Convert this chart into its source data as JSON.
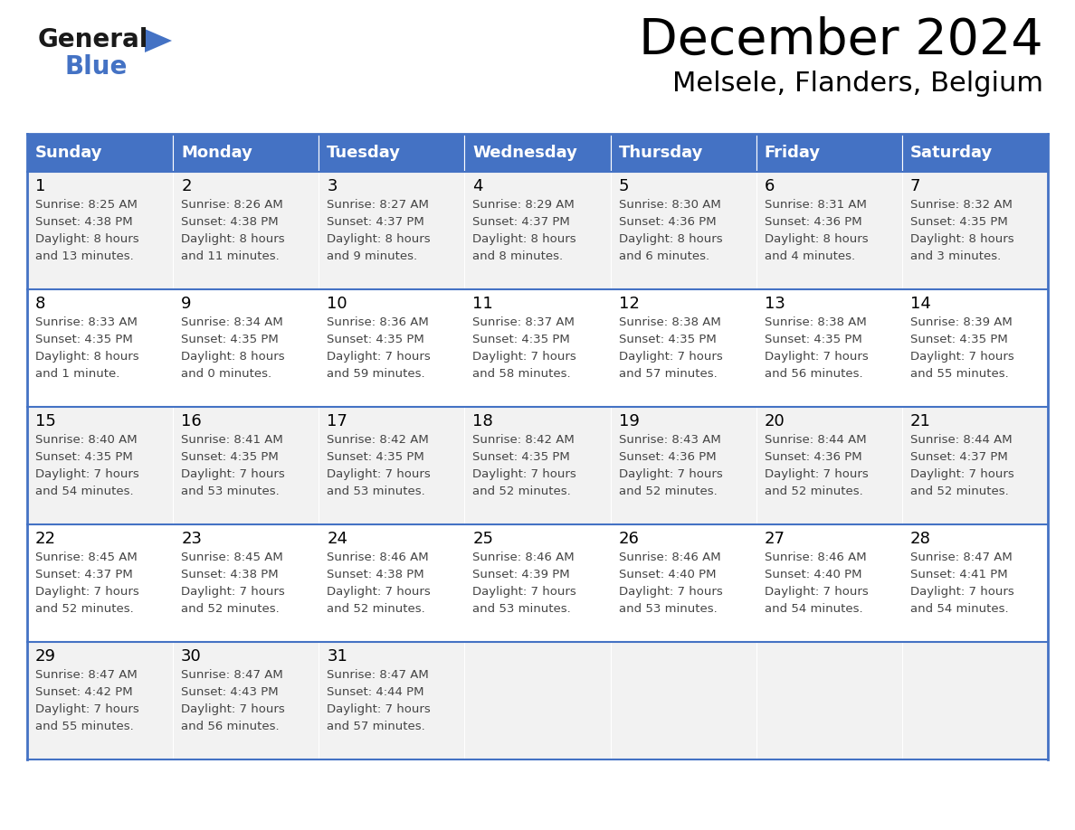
{
  "title": "December 2024",
  "subtitle": "Melsele, Flanders, Belgium",
  "days_of_week": [
    "Sunday",
    "Monday",
    "Tuesday",
    "Wednesday",
    "Thursday",
    "Friday",
    "Saturday"
  ],
  "header_bg": "#4472C4",
  "header_text": "#FFFFFF",
  "row_bg_odd": "#F2F2F2",
  "row_bg_even": "#FFFFFF",
  "border_color": "#4472C4",
  "day_text_color": "#000000",
  "info_text_color": "#444444",
  "calendar": [
    [
      {
        "day": 1,
        "sunrise": "8:25 AM",
        "sunset": "4:38 PM",
        "daylight_h": "8 hours",
        "daylight_m": "and 13 minutes."
      },
      {
        "day": 2,
        "sunrise": "8:26 AM",
        "sunset": "4:38 PM",
        "daylight_h": "8 hours",
        "daylight_m": "and 11 minutes."
      },
      {
        "day": 3,
        "sunrise": "8:27 AM",
        "sunset": "4:37 PM",
        "daylight_h": "8 hours",
        "daylight_m": "and 9 minutes."
      },
      {
        "day": 4,
        "sunrise": "8:29 AM",
        "sunset": "4:37 PM",
        "daylight_h": "8 hours",
        "daylight_m": "and 8 minutes."
      },
      {
        "day": 5,
        "sunrise": "8:30 AM",
        "sunset": "4:36 PM",
        "daylight_h": "8 hours",
        "daylight_m": "and 6 minutes."
      },
      {
        "day": 6,
        "sunrise": "8:31 AM",
        "sunset": "4:36 PM",
        "daylight_h": "8 hours",
        "daylight_m": "and 4 minutes."
      },
      {
        "day": 7,
        "sunrise": "8:32 AM",
        "sunset": "4:35 PM",
        "daylight_h": "8 hours",
        "daylight_m": "and 3 minutes."
      }
    ],
    [
      {
        "day": 8,
        "sunrise": "8:33 AM",
        "sunset": "4:35 PM",
        "daylight_h": "8 hours",
        "daylight_m": "and 1 minute."
      },
      {
        "day": 9,
        "sunrise": "8:34 AM",
        "sunset": "4:35 PM",
        "daylight_h": "8 hours",
        "daylight_m": "and 0 minutes."
      },
      {
        "day": 10,
        "sunrise": "8:36 AM",
        "sunset": "4:35 PM",
        "daylight_h": "7 hours",
        "daylight_m": "and 59 minutes."
      },
      {
        "day": 11,
        "sunrise": "8:37 AM",
        "sunset": "4:35 PM",
        "daylight_h": "7 hours",
        "daylight_m": "and 58 minutes."
      },
      {
        "day": 12,
        "sunrise": "8:38 AM",
        "sunset": "4:35 PM",
        "daylight_h": "7 hours",
        "daylight_m": "and 57 minutes."
      },
      {
        "day": 13,
        "sunrise": "8:38 AM",
        "sunset": "4:35 PM",
        "daylight_h": "7 hours",
        "daylight_m": "and 56 minutes."
      },
      {
        "day": 14,
        "sunrise": "8:39 AM",
        "sunset": "4:35 PM",
        "daylight_h": "7 hours",
        "daylight_m": "and 55 minutes."
      }
    ],
    [
      {
        "day": 15,
        "sunrise": "8:40 AM",
        "sunset": "4:35 PM",
        "daylight_h": "7 hours",
        "daylight_m": "and 54 minutes."
      },
      {
        "day": 16,
        "sunrise": "8:41 AM",
        "sunset": "4:35 PM",
        "daylight_h": "7 hours",
        "daylight_m": "and 53 minutes."
      },
      {
        "day": 17,
        "sunrise": "8:42 AM",
        "sunset": "4:35 PM",
        "daylight_h": "7 hours",
        "daylight_m": "and 53 minutes."
      },
      {
        "day": 18,
        "sunrise": "8:42 AM",
        "sunset": "4:35 PM",
        "daylight_h": "7 hours",
        "daylight_m": "and 52 minutes."
      },
      {
        "day": 19,
        "sunrise": "8:43 AM",
        "sunset": "4:36 PM",
        "daylight_h": "7 hours",
        "daylight_m": "and 52 minutes."
      },
      {
        "day": 20,
        "sunrise": "8:44 AM",
        "sunset": "4:36 PM",
        "daylight_h": "7 hours",
        "daylight_m": "and 52 minutes."
      },
      {
        "day": 21,
        "sunrise": "8:44 AM",
        "sunset": "4:37 PM",
        "daylight_h": "7 hours",
        "daylight_m": "and 52 minutes."
      }
    ],
    [
      {
        "day": 22,
        "sunrise": "8:45 AM",
        "sunset": "4:37 PM",
        "daylight_h": "7 hours",
        "daylight_m": "and 52 minutes."
      },
      {
        "day": 23,
        "sunrise": "8:45 AM",
        "sunset": "4:38 PM",
        "daylight_h": "7 hours",
        "daylight_m": "and 52 minutes."
      },
      {
        "day": 24,
        "sunrise": "8:46 AM",
        "sunset": "4:38 PM",
        "daylight_h": "7 hours",
        "daylight_m": "and 52 minutes."
      },
      {
        "day": 25,
        "sunrise": "8:46 AM",
        "sunset": "4:39 PM",
        "daylight_h": "7 hours",
        "daylight_m": "and 53 minutes."
      },
      {
        "day": 26,
        "sunrise": "8:46 AM",
        "sunset": "4:40 PM",
        "daylight_h": "7 hours",
        "daylight_m": "and 53 minutes."
      },
      {
        "day": 27,
        "sunrise": "8:46 AM",
        "sunset": "4:40 PM",
        "daylight_h": "7 hours",
        "daylight_m": "and 54 minutes."
      },
      {
        "day": 28,
        "sunrise": "8:47 AM",
        "sunset": "4:41 PM",
        "daylight_h": "7 hours",
        "daylight_m": "and 54 minutes."
      }
    ],
    [
      {
        "day": 29,
        "sunrise": "8:47 AM",
        "sunset": "4:42 PM",
        "daylight_h": "7 hours",
        "daylight_m": "and 55 minutes."
      },
      {
        "day": 30,
        "sunrise": "8:47 AM",
        "sunset": "4:43 PM",
        "daylight_h": "7 hours",
        "daylight_m": "and 56 minutes."
      },
      {
        "day": 31,
        "sunrise": "8:47 AM",
        "sunset": "4:44 PM",
        "daylight_h": "7 hours",
        "daylight_m": "and 57 minutes."
      },
      null,
      null,
      null,
      null
    ]
  ],
  "logo_color1": "#1a1a1a",
  "logo_color2": "#4472C4",
  "logo_triangle_color": "#4472C4",
  "fig_width": 11.88,
  "fig_height": 9.18,
  "dpi": 100
}
